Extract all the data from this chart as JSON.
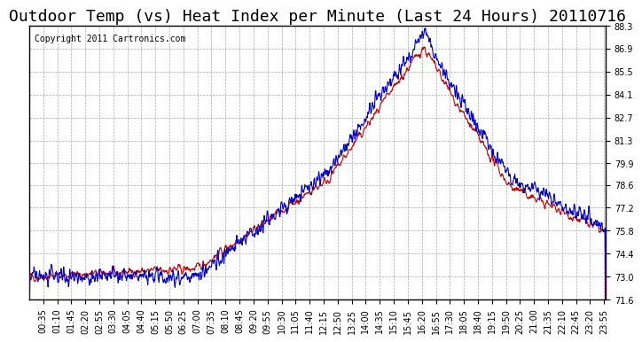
{
  "title": "Outdoor Temp (vs) Heat Index per Minute (Last 24 Hours) 20110716",
  "copyright": "Copyright 2011 Cartronics.com",
  "ylim": [
    71.6,
    88.3
  ],
  "yticks": [
    71.6,
    73.0,
    74.4,
    75.8,
    77.2,
    78.6,
    79.9,
    81.3,
    82.7,
    84.1,
    85.5,
    86.9,
    88.3
  ],
  "xtick_labels": [
    "00:35",
    "01:10",
    "01:45",
    "02:20",
    "02:55",
    "03:30",
    "04:05",
    "04:40",
    "05:15",
    "05:50",
    "06:25",
    "07:00",
    "07:35",
    "08:10",
    "08:45",
    "09:20",
    "09:55",
    "10:30",
    "11:05",
    "11:40",
    "12:15",
    "12:50",
    "13:25",
    "14:00",
    "14:35",
    "15:10",
    "15:45",
    "16:20",
    "16:55",
    "17:30",
    "18:05",
    "18:40",
    "19:15",
    "19:50",
    "20:25",
    "21:00",
    "21:35",
    "22:10",
    "22:45",
    "23:20",
    "23:55"
  ],
  "background_color": "#ffffff",
  "grid_color": "#aaaaaa",
  "line_red_color": "#cc0000",
  "line_blue_color": "#0000cc",
  "title_fontsize": 13,
  "copyright_fontsize": 7,
  "tick_fontsize": 7
}
